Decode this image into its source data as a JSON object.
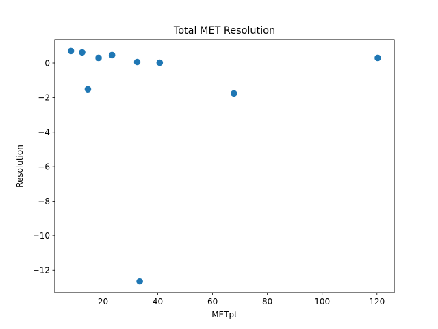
{
  "chart_data": {
    "type": "scatter",
    "title": "Total MET Resolution",
    "xlabel": "METpt",
    "ylabel": "Resolution",
    "xlim": [
      2.4,
      126.3
    ],
    "ylim": [
      -13.3,
      1.35
    ],
    "xticks": [
      20,
      40,
      60,
      80,
      100,
      120
    ],
    "yticks": [
      0,
      -2,
      -4,
      -6,
      -8,
      -10,
      -12
    ],
    "xtick_labels": [
      "20",
      "40",
      "60",
      "80",
      "100",
      "120"
    ],
    "ytick_labels": [
      "0",
      "−2",
      "−4",
      "−6",
      "−8",
      "−10",
      "−12"
    ],
    "grid": false,
    "legend": "none",
    "marker_color": "#1f77b4",
    "series": [
      {
        "points": [
          {
            "x": 8.3,
            "y": 0.7
          },
          {
            "x": 12.4,
            "y": 0.62
          },
          {
            "x": 14.5,
            "y": -1.52
          },
          {
            "x": 18.4,
            "y": 0.3
          },
          {
            "x": 23.3,
            "y": 0.46
          },
          {
            "x": 32.5,
            "y": 0.06
          },
          {
            "x": 33.4,
            "y": -12.65
          },
          {
            "x": 40.7,
            "y": 0.02
          },
          {
            "x": 67.8,
            "y": -1.76
          },
          {
            "x": 120.3,
            "y": 0.3
          }
        ]
      }
    ]
  }
}
